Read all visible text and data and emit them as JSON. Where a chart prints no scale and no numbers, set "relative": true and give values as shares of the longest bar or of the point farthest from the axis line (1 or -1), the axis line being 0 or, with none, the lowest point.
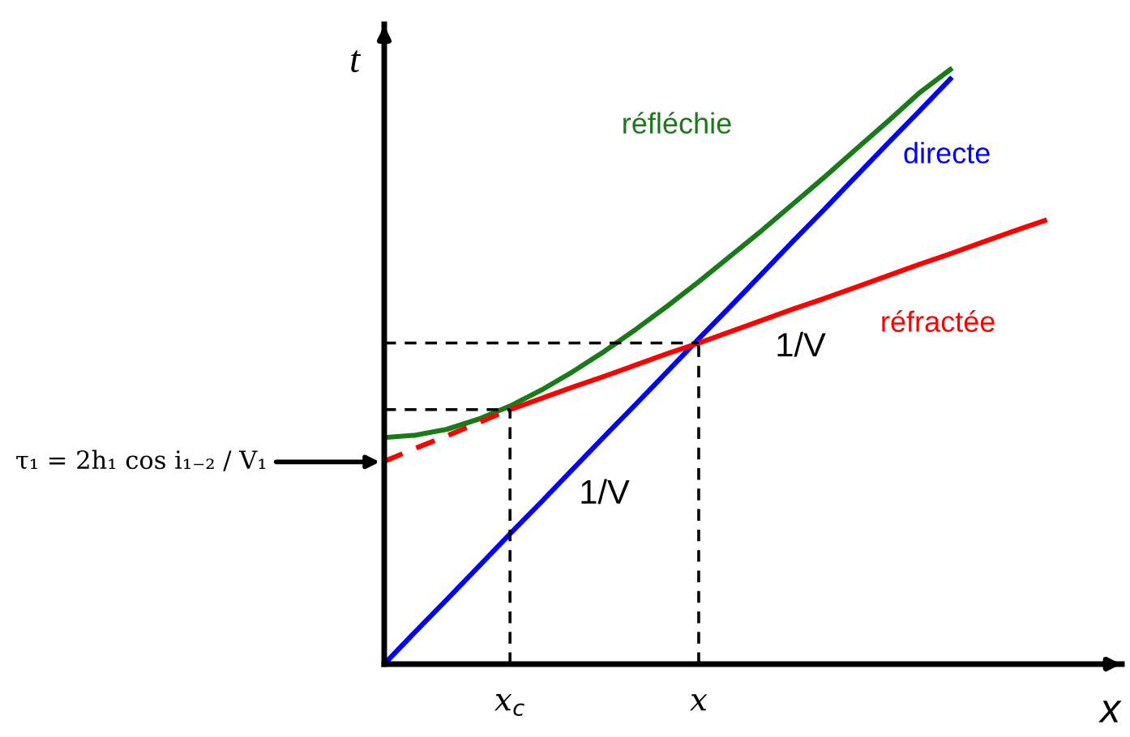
{
  "chart_data": {
    "type": "line",
    "relative": true,
    "xlabel": "x",
    "ylabel": "t",
    "categories": [
      null,
      null,
      null,
      null,
      "x$_{c}$",
      null,
      null,
      null,
      null,
      null,
      "x",
      null,
      null,
      null,
      null,
      null,
      null,
      null,
      null,
      null,
      null,
      null
    ],
    "series": [
      {
        "name": "réfléchie",
        "color": "#1a7a1a",
        "values": [
          0.381,
          0.385,
          0.395,
          0.412,
          0.434,
          0.461,
          0.492,
          0.526,
          0.563,
          0.602,
          0.643,
          0.686,
          0.729,
          0.774,
          0.819,
          0.866,
          0.912,
          0.96,
          1.0,
          null,
          null,
          null
        ]
      },
      {
        "name": "directe",
        "color": "#0000ff",
        "values": [
          0,
          0.055,
          0.109,
          0.164,
          0.219,
          0.273,
          0.328,
          0.383,
          0.437,
          0.492,
          0.547,
          0.601,
          0.656,
          0.711,
          0.765,
          0.82,
          0.875,
          0.929,
          0.984,
          null,
          null,
          null
        ]
      },
      {
        "name": "réfractée",
        "color": "#ff0000",
        "values": [
          null,
          null,
          null,
          null,
          0.428,
          0.447,
          0.466,
          0.484,
          0.503,
          0.522,
          0.54,
          0.559,
          0.578,
          0.597,
          0.615,
          0.634,
          0.653,
          0.672,
          0.69,
          0.709,
          0.728,
          0.746
        ]
      },
      {
        "color": "#ff0000",
        "line_style": "dashed",
        "values": [
          0.341,
          0.363,
          0.384,
          0.406,
          0.428,
          null,
          null,
          null,
          null,
          null,
          null,
          null,
          null,
          null,
          null,
          null,
          null,
          null,
          null,
          null,
          null,
          null
        ]
      }
    ],
    "ref_lines": [
      {
        "axis": "y",
        "value": 0.428,
        "color": "#000000",
        "line_style": "dashed"
      },
      {
        "axis": "x",
        "value": "x$_{c}$",
        "color": "#000000",
        "line_style": "dashed"
      },
      {
        "axis": "y",
        "value": 0.54,
        "color": "#000000",
        "line_style": "dashed"
      },
      {
        "axis": "x",
        "value": "x",
        "color": "#000000",
        "line_style": "dashed"
      }
    ],
    "annotations": [
      "τ₁ = 2h₁ cos i₁₋₂ / V₁",
      "1/V",
      "1/V"
    ]
  }
}
